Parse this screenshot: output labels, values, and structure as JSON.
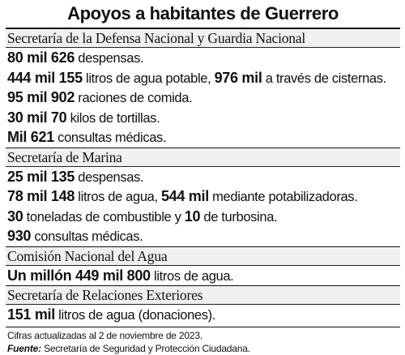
{
  "title": "Apoyos a habitantes de Guerrero",
  "sections": [
    {
      "heading": "Secretaría de la Defensa Nacional y Guardia Nacional",
      "items": [
        {
          "parts": [
            {
              "b": "80 mil 626"
            },
            {
              "t": " despensas."
            }
          ]
        },
        {
          "parts": [
            {
              "b": "444 mil 155"
            },
            {
              "t": " litros de agua potable, "
            },
            {
              "b": "976 mil"
            },
            {
              "t": " a través de cisternas."
            }
          ]
        },
        {
          "parts": [
            {
              "b": "95 mil 902"
            },
            {
              "t": " raciones de comida."
            }
          ]
        },
        {
          "parts": [
            {
              "b": "30 mil 70"
            },
            {
              "t": " kilos de tortillas."
            }
          ]
        },
        {
          "parts": [
            {
              "b": "Mil 621"
            },
            {
              "t": " consultas médicas."
            }
          ]
        }
      ]
    },
    {
      "heading": "Secretaría de Marina",
      "items": [
        {
          "parts": [
            {
              "b": "25 mil 135"
            },
            {
              "t": " despensas."
            }
          ]
        },
        {
          "parts": [
            {
              "b": "78 mil 148"
            },
            {
              "t": " litros de agua, "
            },
            {
              "b": "544 mil"
            },
            {
              "t": " mediante potabilizadoras."
            }
          ]
        },
        {
          "parts": [
            {
              "b": "30"
            },
            {
              "t": " toneladas de combustible y "
            },
            {
              "b": "10"
            },
            {
              "t": " de turbosina."
            }
          ]
        },
        {
          "parts": [
            {
              "b": "930"
            },
            {
              "t": " consultas médicas."
            }
          ]
        }
      ]
    },
    {
      "heading": "Comisión Nacional del Agua",
      "items": [
        {
          "parts": [
            {
              "b": "Un millón 449 mil 800"
            },
            {
              "t": " litros de agua."
            }
          ]
        }
      ]
    },
    {
      "heading": "Secretaría de Relaciones Exteriores",
      "items": [
        {
          "parts": [
            {
              "b": "151 mil"
            },
            {
              "t": " litros de agua (donaciones)."
            }
          ]
        }
      ]
    }
  ],
  "footer": {
    "note": "Cifras actualizadas al 2 de noviembre de 2023.",
    "source_label": "Fuente:",
    "source_text": " Secretaría de Seguridad y Protección Ciudadana."
  }
}
